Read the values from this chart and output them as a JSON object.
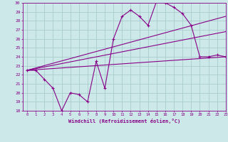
{
  "xlabel": "Windchill (Refroidissement éolien,°C)",
  "ylabel": "",
  "xlim": [
    -0.5,
    23
  ],
  "ylim": [
    18,
    30
  ],
  "yticks": [
    18,
    19,
    20,
    21,
    22,
    23,
    24,
    25,
    26,
    27,
    28,
    29,
    30
  ],
  "xticks": [
    0,
    1,
    2,
    3,
    4,
    5,
    6,
    7,
    8,
    9,
    10,
    11,
    12,
    13,
    14,
    15,
    16,
    17,
    18,
    19,
    20,
    21,
    22,
    23
  ],
  "bg_color": "#cce8e8",
  "line_color": "#880088",
  "grid_color": "#aacccc",
  "data_x": [
    0,
    1,
    2,
    3,
    4,
    5,
    6,
    7,
    8,
    9,
    10,
    11,
    12,
    13,
    14,
    15,
    16,
    17,
    18,
    19,
    20,
    21,
    22,
    23
  ],
  "data_y": [
    22.5,
    22.5,
    21.5,
    20.5,
    18.0,
    20.0,
    19.8,
    19.0,
    23.5,
    20.5,
    26.0,
    28.5,
    29.2,
    28.5,
    27.5,
    30.2,
    30.0,
    29.5,
    28.8,
    27.5,
    24.0,
    24.0,
    24.2,
    24.0
  ],
  "trend1_x": [
    0,
    23
  ],
  "trend1_y": [
    22.5,
    24.0
  ],
  "trend2_x": [
    0,
    23
  ],
  "trend2_y": [
    22.5,
    26.8
  ],
  "trend3_x": [
    0,
    23
  ],
  "trend3_y": [
    22.5,
    28.5
  ]
}
